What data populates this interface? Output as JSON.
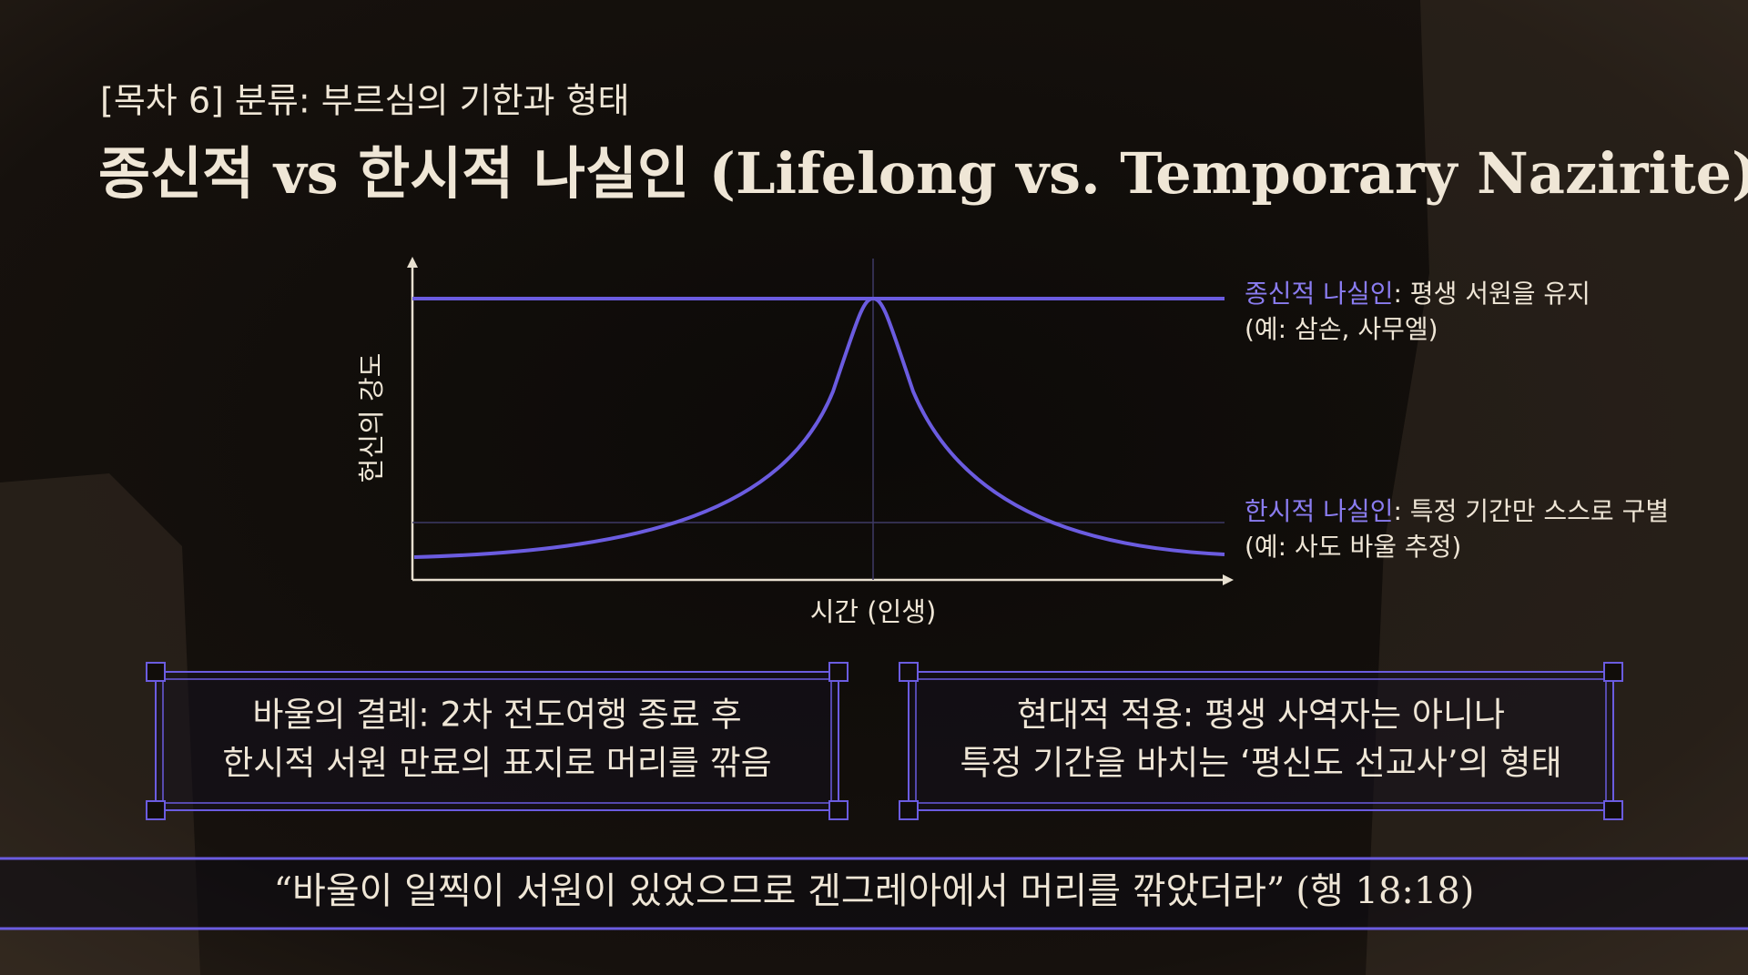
{
  "header": {
    "subtitle": "[목차 6] 분류: 부르심의 기한과 형태",
    "title": "종신적 vs 한시적 나실인 (Lifelong vs. Temporary Nazirite)"
  },
  "diagram": {
    "y_axis_label": "헌신의 강도",
    "x_axis_label": "시간 (인생)",
    "annotations": [
      {
        "highlight": "종신적 나실인",
        "text": ": 평생 서원을 유지",
        "example": "(예: 삼손, 사무엘)"
      },
      {
        "highlight": "한시적 나실인",
        "text": ": 특정 기간만 스스로 구별",
        "example": "(예: 사도 바울 추정)"
      }
    ]
  },
  "boxes": [
    {
      "lines": [
        "바울의 결례: 2차 전도여행 종료 후",
        "한시적 서원 만료의 표지로 머리를 깎음"
      ]
    },
    {
      "lines": [
        "현대적 적용: 평생 사역자는 아니나",
        "특정 기간을 바치는 ‘평신도 선교사’의 형태"
      ]
    }
  ],
  "quote": {
    "text": "“바울이 일찍이 서원이 있었으므로 겐그레아에서 머리를 깎았더라”",
    "reference": "(행 18:18)"
  }
}
